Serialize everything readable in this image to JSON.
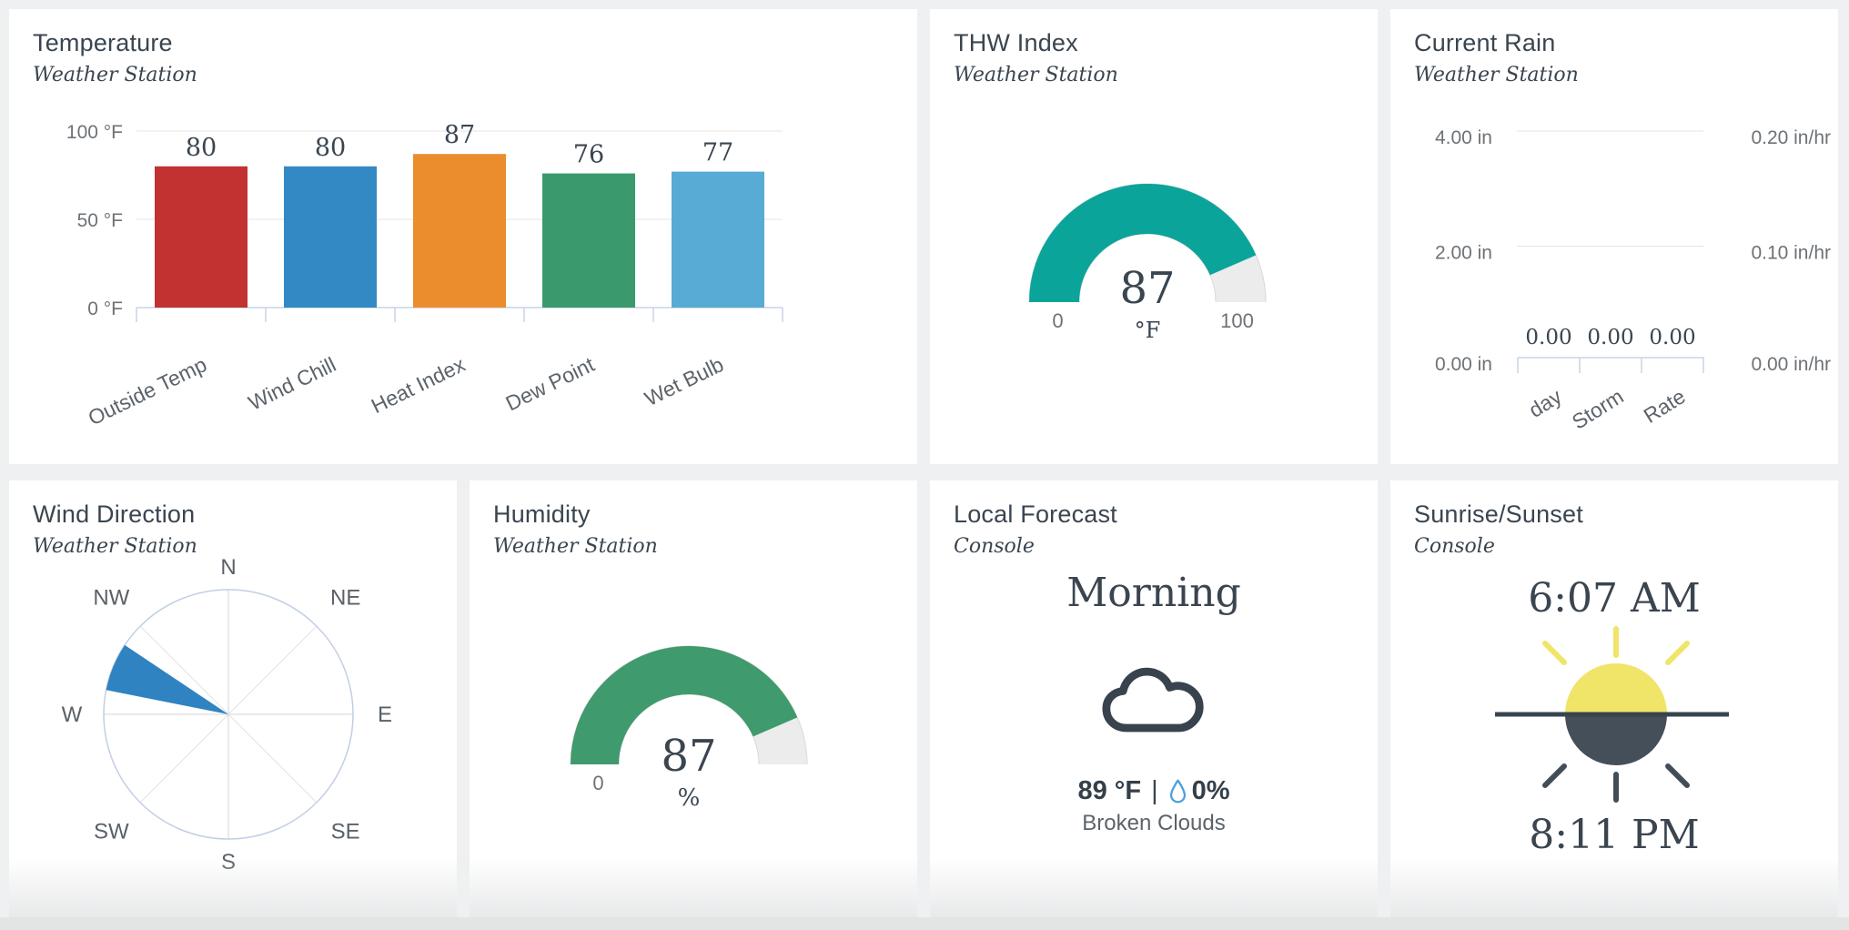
{
  "page": {
    "background": "#eff0f1",
    "panel_background": "#ffffff",
    "bottom_strip_color": "#e3e4e4",
    "title_color": "#3a4550",
    "axis_text_color": "#6d7277"
  },
  "panels": {
    "temperature": {
      "title": "Temperature",
      "subtitle": "Weather Station"
    },
    "thw_index": {
      "title": "THW Index",
      "subtitle": "Weather Station",
      "gauge": {
        "value": "87",
        "unit": "°F",
        "min_label": "0",
        "max_label": "100",
        "color": "#0aa49a"
      }
    },
    "current_rain": {
      "title": "Current Rain",
      "subtitle": "Weather Station"
    },
    "wind_direction": {
      "title": "Wind Direction",
      "subtitle": "Weather Station"
    },
    "humidity": {
      "title": "Humidity",
      "subtitle": "Weather Station",
      "gauge": {
        "value": "87",
        "unit": "%",
        "min_label": "0",
        "color": "#3f9a6e"
      }
    },
    "local_forecast": {
      "title": "Local Forecast",
      "subtitle": "Console",
      "period": "Morning",
      "temperature": "89 °F",
      "separator": "|",
      "precip_chance": "0%",
      "condition": "Broken Clouds",
      "icon": "cloud-icon"
    },
    "sunrise_sunset": {
      "title": "Sunrise/Sunset",
      "subtitle": "Console",
      "sunrise_time": "6:07 AM",
      "sunset_time": "8:11 PM",
      "icon": "sun-horizon-icon"
    }
  },
  "chart_data": [
    {
      "id": "temperature",
      "type": "bar",
      "title": "Temperature",
      "categories": [
        "Outside Temp",
        "Wind Chill",
        "Heat Index",
        "Dew Point",
        "Wet Bulb"
      ],
      "values": [
        80,
        80,
        87,
        76,
        77
      ],
      "bar_colors": [
        "#c23230",
        "#3289c4",
        "#ec8d2d",
        "#3b9a6d",
        "#57abd4"
      ],
      "ylim": [
        0,
        100
      ],
      "yticks": [
        0,
        50,
        100
      ],
      "ytick_labels": [
        "0 °F",
        "50 °F",
        "100 °F"
      ],
      "ylabel": "°F",
      "grid": true,
      "legend": "none"
    },
    {
      "id": "thw_gauge",
      "type": "gauge",
      "title": "THW Index",
      "value": 87,
      "min": 0,
      "max": 100,
      "unit": "°F",
      "min_label": "0",
      "max_label": "100",
      "color": "#0aa49a",
      "track_color": "#ececec"
    },
    {
      "id": "humidity_gauge",
      "type": "gauge",
      "title": "Humidity",
      "value": 87,
      "min": 0,
      "max": 100,
      "unit": "%",
      "min_label": "0",
      "max_label": "",
      "color": "#3f9a6e",
      "track_color": "#ececec"
    },
    {
      "id": "current_rain",
      "type": "bar",
      "title": "Current Rain",
      "categories": [
        "day",
        "Storm",
        "Rate"
      ],
      "values": [
        0,
        0,
        0
      ],
      "value_labels": [
        "0.00",
        "0.00",
        "0.00"
      ],
      "left_axis_labels": [
        "4.00 in",
        "2.00 in",
        "0.00 in"
      ],
      "right_axis_labels": [
        "0.20 in/hr",
        "0.10 in/hr",
        "0.00 in/hr"
      ],
      "left_ylim": [
        0,
        4
      ],
      "right_ylim": [
        0,
        0.2
      ],
      "grid": true
    },
    {
      "id": "wind_rose",
      "type": "wind_rose",
      "title": "Wind Direction",
      "directions": [
        "N",
        "NE",
        "E",
        "SE",
        "S",
        "SW",
        "W",
        "NW"
      ],
      "active_sector": {
        "direction": "WNW",
        "from_bearing": 281.25,
        "to_bearing": 303.75,
        "color": "#2f83c0"
      }
    }
  ]
}
